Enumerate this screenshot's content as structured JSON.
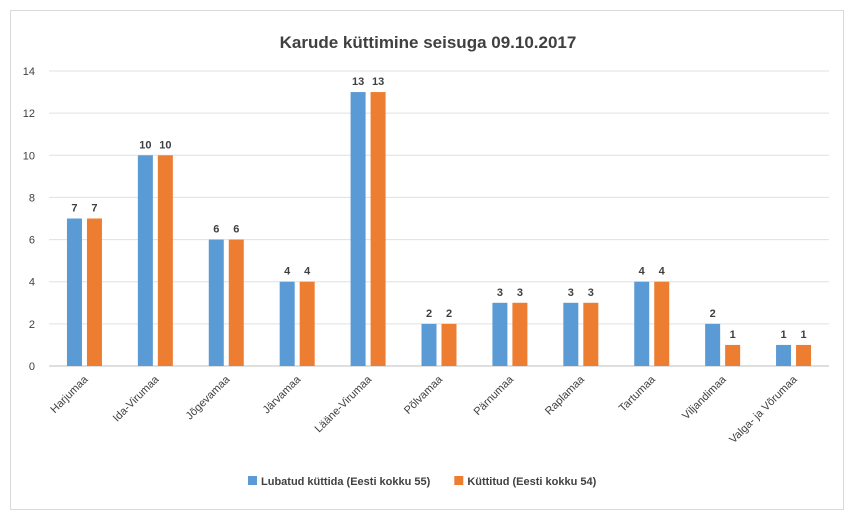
{
  "chart_data": {
    "type": "bar",
    "title": "Karude küttimine seisuga 09.10.2017",
    "xlabel": "",
    "ylabel": "",
    "ylim": [
      0,
      14
    ],
    "yticks": [
      0,
      2,
      4,
      6,
      8,
      10,
      12,
      14
    ],
    "grid": true,
    "legend_position": "bottom",
    "categories": [
      "Harjumaa",
      "Ida-Virumaa",
      "Jõgevamaa",
      "Järvamaa",
      "Lääne-Virumaa",
      "Põlvamaa",
      "Pärnumaa",
      "Raplamaa",
      "Tartumaa",
      "Viljandimaa",
      "Valga- ja Võrumaa"
    ],
    "series": [
      {
        "name": "Lubatud küttida (Eesti kokku 55)",
        "color": "#5b9bd5",
        "values": [
          7,
          10,
          6,
          4,
          13,
          2,
          3,
          3,
          4,
          2,
          1
        ]
      },
      {
        "name": "Küttitud (Eesti kokku 54)",
        "color": "#ed7d31",
        "values": [
          7,
          10,
          6,
          4,
          13,
          2,
          3,
          3,
          4,
          1,
          1
        ]
      }
    ]
  }
}
